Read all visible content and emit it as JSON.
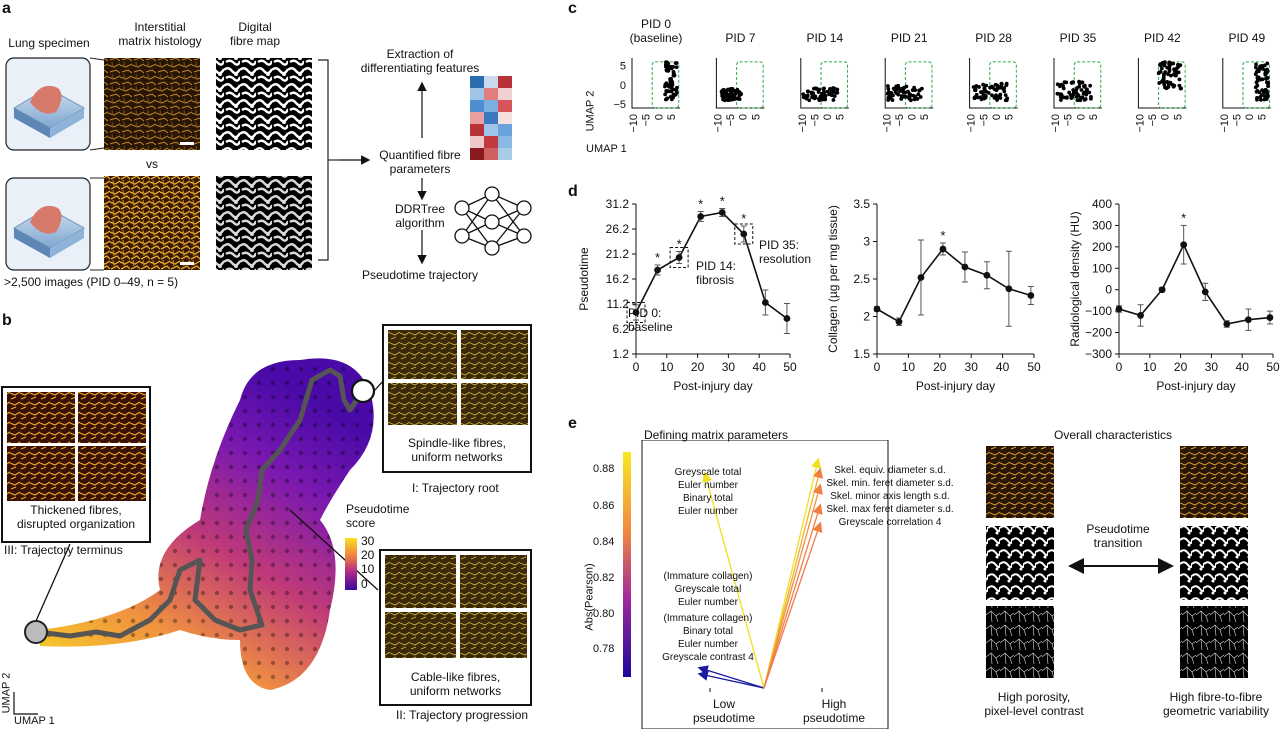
{
  "panels": {
    "a": {
      "letter": "a",
      "col_lung": "Lung specimen",
      "col_histology": "Interstitial\nmatrix histology",
      "col_fibremap": "Digital\nfibre map",
      "vs": "vs",
      "footer": ">2,500 images (PID 0–49, n = 5)",
      "flow": {
        "extraction": "Extraction of\ndifferentiating features",
        "quantified": "Quantified fibre\nparameters",
        "ddrtree": "DDRTree\nalgorithm",
        "trajectory": "Pseudotime trajectory"
      }
    },
    "b": {
      "letter": "b",
      "root_box": "Spindle-like fibres,\nuniform networks",
      "root_label": "I: Trajectory root",
      "terminus_box": "Thickened fibres,\ndisrupted organization",
      "terminus_label": "III: Trajectory terminus",
      "progression_box": "Cable-like fibres,\nuniform networks",
      "progression_label": "II: Trajectory progression",
      "colorbar_title": "Pseudotime\nscore",
      "colorbar_ticks": [
        "30",
        "20",
        "10",
        "0"
      ],
      "axis_y": "UMAP 2",
      "axis_x": "UMAP 1"
    },
    "c": {
      "letter": "c",
      "titles": [
        "PID 0\n(baseline)",
        "PID 7",
        "PID 14",
        "PID 21",
        "PID 28",
        "PID 35",
        "PID 42",
        "PID 49"
      ],
      "yticks": [
        "5",
        "0",
        "−5"
      ],
      "xticks": [
        "−10",
        "−5",
        "0",
        "5"
      ],
      "axis_y": "UMAP 2",
      "axis_x": "UMAP 1"
    },
    "d": {
      "letter": "d",
      "ann_baseline": "PID 0:\nbaseline",
      "ann_fibrosis": "PID 14:\nfibrosis",
      "ann_resolution": "PID 35:\nresolution"
    },
    "e": {
      "letter": "e",
      "title_left": "Defining matrix parameters",
      "title_right": "Overall characteristics",
      "ylabel": "Abs(Pearson)",
      "yticks": [
        "0.88",
        "0.86",
        "0.84",
        "0.82",
        "0.80",
        "0.78"
      ],
      "x_low": "Low\npseudotime",
      "x_high": "High\npseudotime",
      "low_groups": [
        "Greyscale total\nEuler number\nBinary total\nEuler number",
        "(Immature collagen)\nGreyscale total\nEuler number",
        "(Immature collagen)\nBinary total\nEuler number\nGreyscale contrast 4"
      ],
      "high_group": "Skel. equiv. diameter s.d.\nSkel. min. feret diameter s.d.\nSkel. minor axis length s.d.\nSkel. max feret diameter s.d.\nGreyscale correlation 4",
      "transition": "Pseudotime\ntransition",
      "caption_left": "High porosity,\npixel-level contrast",
      "caption_right": "High fibre-to-fibre\ngeometric variability"
    }
  },
  "chart_data": [
    {
      "type": "line",
      "id": "pseudotime",
      "xlabel": "Post-injury day",
      "ylabel": "Pseudotime",
      "x": [
        0,
        7,
        14,
        21,
        28,
        35,
        42,
        49
      ],
      "y": [
        9.5,
        18.0,
        20.5,
        28.7,
        29.5,
        25.2,
        11.5,
        8.3
      ],
      "err": [
        1.5,
        1.0,
        1.2,
        1.0,
        0.8,
        1.6,
        2.5,
        3.0
      ],
      "significant": [
        false,
        true,
        true,
        true,
        true,
        true,
        false,
        false
      ],
      "xticks": [
        0,
        10,
        20,
        30,
        40,
        50
      ],
      "yticks": [
        1.2,
        6.2,
        11.2,
        16.2,
        21.2,
        26.2,
        31.2
      ],
      "xlim": [
        0,
        50
      ],
      "ylim": [
        1.2,
        31.2
      ]
    },
    {
      "type": "line",
      "id": "collagen",
      "xlabel": "Post-injury day",
      "ylabel": "Collagen (µg per mg tissue)",
      "x": [
        0,
        7,
        14,
        21,
        28,
        35,
        42,
        49
      ],
      "y": [
        2.1,
        1.93,
        2.52,
        2.9,
        2.66,
        2.55,
        2.37,
        2.28
      ],
      "err": [
        0.03,
        0.05,
        0.5,
        0.08,
        0.2,
        0.18,
        0.5,
        0.12
      ],
      "significant": [
        false,
        false,
        false,
        true,
        false,
        false,
        false,
        false
      ],
      "xticks": [
        0,
        10,
        20,
        30,
        40,
        50
      ],
      "yticks": [
        1.5,
        2.0,
        2.5,
        3.0,
        3.5
      ],
      "xlim": [
        0,
        50
      ],
      "ylim": [
        1.5,
        3.5
      ]
    },
    {
      "type": "line",
      "id": "radiological",
      "xlabel": "Post-injury day",
      "ylabel": "Radiological density (HU)",
      "x": [
        0,
        7,
        14,
        21,
        28,
        35,
        42,
        49
      ],
      "y": [
        -90,
        -120,
        0,
        210,
        -10,
        -160,
        -140,
        -130
      ],
      "err": [
        15,
        50,
        10,
        90,
        40,
        15,
        50,
        30
      ],
      "significant": [
        false,
        false,
        false,
        true,
        false,
        false,
        false,
        false
      ],
      "xticks": [
        0,
        10,
        20,
        30,
        40,
        50
      ],
      "yticks": [
        -300,
        -200,
        -100,
        0,
        100,
        200,
        300,
        400
      ],
      "xlim": [
        0,
        50
      ],
      "ylim": [
        -300,
        400
      ]
    },
    {
      "type": "scatter",
      "id": "umap-pid-panels",
      "xlabel": "UMAP 1",
      "ylabel": "UMAP 2",
      "xlim": [
        -12,
        7
      ],
      "ylim": [
        -6,
        7
      ]
    }
  ],
  "colors": {
    "accent_green": "#2eaa4a",
    "trajectory_grey": "#555555",
    "arrow_low": "#1a1aa0",
    "arrow_high_yellow": "#f0e020",
    "arrow_high_orange": "#f08040"
  }
}
